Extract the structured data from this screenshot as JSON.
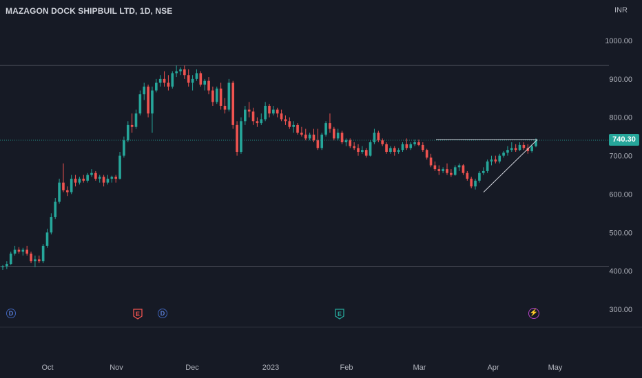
{
  "header": {
    "title": "MAZAGON DOCK SHIPBUIL LTD, 1D, NSE",
    "currency": "INR"
  },
  "price_badge": "740.30",
  "colors": {
    "up": "#26a69a",
    "down": "#ef5350",
    "background": "#161a25",
    "grid": "#2a2e39",
    "current_line": "#26a69a",
    "trendline": "#d1d4dc"
  },
  "events": [
    {
      "kind": "dividend",
      "label": "D",
      "date_index": 0
    },
    {
      "kind": "earnings-red",
      "label": "E",
      "date_index": 1
    },
    {
      "kind": "dividend",
      "label": "D",
      "date_index": 2
    },
    {
      "kind": "earnings-green",
      "label": "E",
      "date_index": 3
    },
    {
      "kind": "flash",
      "label": "⚡",
      "date_index": 4
    }
  ],
  "chart_data": {
    "type": "candlestick",
    "title": "MAZAGON DOCK SHIPBUIL LTD, 1D, NSE",
    "y_axis": {
      "ticks": [
        "1000.00",
        "900.00",
        "800.00",
        "700.00",
        "600.00",
        "500.00",
        "400.00",
        "300.00"
      ],
      "range": [
        260,
        1040
      ]
    },
    "x_axis": {
      "ticks": [
        "Oct",
        "Nov",
        "Dec",
        "2023",
        "Feb",
        "Mar",
        "Apr",
        "May"
      ]
    },
    "current_price": 740.3,
    "horizontal_lines": [
      935,
      412
    ],
    "candles": [
      {
        "o": 410,
        "h": 415,
        "l": 402,
        "c": 412
      },
      {
        "o": 412,
        "h": 425,
        "l": 405,
        "c": 418
      },
      {
        "o": 418,
        "h": 450,
        "l": 415,
        "c": 445
      },
      {
        "o": 445,
        "h": 465,
        "l": 440,
        "c": 455
      },
      {
        "o": 455,
        "h": 462,
        "l": 445,
        "c": 450
      },
      {
        "o": 450,
        "h": 460,
        "l": 440,
        "c": 455
      },
      {
        "o": 455,
        "h": 465,
        "l": 440,
        "c": 445
      },
      {
        "o": 445,
        "h": 450,
        "l": 420,
        "c": 425
      },
      {
        "o": 425,
        "h": 440,
        "l": 410,
        "c": 430
      },
      {
        "o": 430,
        "h": 440,
        "l": 420,
        "c": 425
      },
      {
        "o": 425,
        "h": 470,
        "l": 420,
        "c": 465
      },
      {
        "o": 465,
        "h": 510,
        "l": 460,
        "c": 500
      },
      {
        "o": 500,
        "h": 550,
        "l": 495,
        "c": 540
      },
      {
        "o": 540,
        "h": 590,
        "l": 535,
        "c": 580
      },
      {
        "o": 580,
        "h": 640,
        "l": 575,
        "c": 630
      },
      {
        "o": 630,
        "h": 680,
        "l": 605,
        "c": 610
      },
      {
        "o": 610,
        "h": 620,
        "l": 595,
        "c": 605
      },
      {
        "o": 605,
        "h": 650,
        "l": 600,
        "c": 640
      },
      {
        "o": 640,
        "h": 650,
        "l": 620,
        "c": 630
      },
      {
        "o": 630,
        "h": 645,
        "l": 625,
        "c": 640
      },
      {
        "o": 640,
        "h": 650,
        "l": 630,
        "c": 635
      },
      {
        "o": 635,
        "h": 655,
        "l": 630,
        "c": 650
      },
      {
        "o": 650,
        "h": 665,
        "l": 645,
        "c": 655
      },
      {
        "o": 655,
        "h": 660,
        "l": 635,
        "c": 640
      },
      {
        "o": 640,
        "h": 650,
        "l": 630,
        "c": 645
      },
      {
        "o": 645,
        "h": 650,
        "l": 620,
        "c": 630
      },
      {
        "o": 630,
        "h": 650,
        "l": 625,
        "c": 640
      },
      {
        "o": 640,
        "h": 648,
        "l": 630,
        "c": 645
      },
      {
        "o": 645,
        "h": 650,
        "l": 630,
        "c": 640
      },
      {
        "o": 640,
        "h": 710,
        "l": 638,
        "c": 700
      },
      {
        "o": 700,
        "h": 750,
        "l": 695,
        "c": 740
      },
      {
        "o": 740,
        "h": 790,
        "l": 735,
        "c": 780
      },
      {
        "o": 780,
        "h": 810,
        "l": 760,
        "c": 775
      },
      {
        "o": 775,
        "h": 820,
        "l": 770,
        "c": 810
      },
      {
        "o": 810,
        "h": 870,
        "l": 805,
        "c": 860
      },
      {
        "o": 860,
        "h": 890,
        "l": 845,
        "c": 880
      },
      {
        "o": 880,
        "h": 885,
        "l": 800,
        "c": 810
      },
      {
        "o": 810,
        "h": 880,
        "l": 760,
        "c": 870
      },
      {
        "o": 870,
        "h": 900,
        "l": 865,
        "c": 890
      },
      {
        "o": 890,
        "h": 910,
        "l": 880,
        "c": 900
      },
      {
        "o": 900,
        "h": 920,
        "l": 880,
        "c": 890
      },
      {
        "o": 890,
        "h": 910,
        "l": 870,
        "c": 880
      },
      {
        "o": 880,
        "h": 920,
        "l": 875,
        "c": 915
      },
      {
        "o": 915,
        "h": 935,
        "l": 905,
        "c": 920
      },
      {
        "o": 920,
        "h": 930,
        "l": 910,
        "c": 925
      },
      {
        "o": 925,
        "h": 935,
        "l": 900,
        "c": 910
      },
      {
        "o": 910,
        "h": 925,
        "l": 880,
        "c": 890
      },
      {
        "o": 890,
        "h": 910,
        "l": 870,
        "c": 900
      },
      {
        "o": 900,
        "h": 925,
        "l": 895,
        "c": 915
      },
      {
        "o": 915,
        "h": 920,
        "l": 880,
        "c": 885
      },
      {
        "o": 885,
        "h": 900,
        "l": 870,
        "c": 895
      },
      {
        "o": 895,
        "h": 905,
        "l": 860,
        "c": 870
      },
      {
        "o": 870,
        "h": 880,
        "l": 830,
        "c": 840
      },
      {
        "o": 840,
        "h": 880,
        "l": 835,
        "c": 875
      },
      {
        "o": 875,
        "h": 890,
        "l": 820,
        "c": 830
      },
      {
        "o": 830,
        "h": 850,
        "l": 810,
        "c": 820
      },
      {
        "o": 820,
        "h": 900,
        "l": 815,
        "c": 890
      },
      {
        "o": 890,
        "h": 895,
        "l": 770,
        "c": 780
      },
      {
        "o": 780,
        "h": 790,
        "l": 700,
        "c": 710
      },
      {
        "o": 710,
        "h": 800,
        "l": 705,
        "c": 790
      },
      {
        "o": 790,
        "h": 830,
        "l": 780,
        "c": 820
      },
      {
        "o": 820,
        "h": 840,
        "l": 800,
        "c": 815
      },
      {
        "o": 815,
        "h": 825,
        "l": 780,
        "c": 790
      },
      {
        "o": 790,
        "h": 800,
        "l": 775,
        "c": 785
      },
      {
        "o": 785,
        "h": 810,
        "l": 780,
        "c": 795
      },
      {
        "o": 795,
        "h": 840,
        "l": 790,
        "c": 830
      },
      {
        "o": 830,
        "h": 835,
        "l": 800,
        "c": 810
      },
      {
        "o": 810,
        "h": 830,
        "l": 805,
        "c": 820
      },
      {
        "o": 820,
        "h": 825,
        "l": 800,
        "c": 810
      },
      {
        "o": 810,
        "h": 820,
        "l": 790,
        "c": 795
      },
      {
        "o": 795,
        "h": 805,
        "l": 780,
        "c": 790
      },
      {
        "o": 790,
        "h": 800,
        "l": 770,
        "c": 775
      },
      {
        "o": 775,
        "h": 790,
        "l": 760,
        "c": 780
      },
      {
        "o": 780,
        "h": 785,
        "l": 755,
        "c": 760
      },
      {
        "o": 760,
        "h": 775,
        "l": 750,
        "c": 755
      },
      {
        "o": 755,
        "h": 770,
        "l": 740,
        "c": 745
      },
      {
        "o": 745,
        "h": 760,
        "l": 740,
        "c": 755
      },
      {
        "o": 755,
        "h": 770,
        "l": 735,
        "c": 740
      },
      {
        "o": 740,
        "h": 770,
        "l": 715,
        "c": 720
      },
      {
        "o": 720,
        "h": 760,
        "l": 715,
        "c": 755
      },
      {
        "o": 755,
        "h": 790,
        "l": 750,
        "c": 785
      },
      {
        "o": 785,
        "h": 810,
        "l": 760,
        "c": 770
      },
      {
        "o": 770,
        "h": 775,
        "l": 740,
        "c": 745
      },
      {
        "o": 745,
        "h": 770,
        "l": 740,
        "c": 760
      },
      {
        "o": 760,
        "h": 765,
        "l": 730,
        "c": 735
      },
      {
        "o": 735,
        "h": 745,
        "l": 725,
        "c": 740
      },
      {
        "o": 740,
        "h": 745,
        "l": 720,
        "c": 725
      },
      {
        "o": 725,
        "h": 735,
        "l": 715,
        "c": 720
      },
      {
        "o": 720,
        "h": 730,
        "l": 700,
        "c": 710
      },
      {
        "o": 710,
        "h": 725,
        "l": 705,
        "c": 715
      },
      {
        "o": 715,
        "h": 720,
        "l": 695,
        "c": 700
      },
      {
        "o": 700,
        "h": 740,
        "l": 698,
        "c": 735
      },
      {
        "o": 735,
        "h": 770,
        "l": 730,
        "c": 760
      },
      {
        "o": 760,
        "h": 765,
        "l": 735,
        "c": 740
      },
      {
        "o": 740,
        "h": 745,
        "l": 725,
        "c": 730
      },
      {
        "o": 730,
        "h": 735,
        "l": 705,
        "c": 710
      },
      {
        "o": 710,
        "h": 725,
        "l": 705,
        "c": 720
      },
      {
        "o": 720,
        "h": 725,
        "l": 700,
        "c": 710
      },
      {
        "o": 710,
        "h": 720,
        "l": 705,
        "c": 715
      },
      {
        "o": 715,
        "h": 735,
        "l": 710,
        "c": 730
      },
      {
        "o": 730,
        "h": 745,
        "l": 715,
        "c": 720
      },
      {
        "o": 720,
        "h": 735,
        "l": 715,
        "c": 730
      },
      {
        "o": 730,
        "h": 742,
        "l": 725,
        "c": 735
      },
      {
        "o": 735,
        "h": 742,
        "l": 725,
        "c": 728
      },
      {
        "o": 728,
        "h": 735,
        "l": 710,
        "c": 715
      },
      {
        "o": 715,
        "h": 718,
        "l": 690,
        "c": 695
      },
      {
        "o": 695,
        "h": 705,
        "l": 670,
        "c": 675
      },
      {
        "o": 675,
        "h": 685,
        "l": 660,
        "c": 665
      },
      {
        "o": 665,
        "h": 675,
        "l": 650,
        "c": 660
      },
      {
        "o": 660,
        "h": 670,
        "l": 655,
        "c": 665
      },
      {
        "o": 665,
        "h": 680,
        "l": 650,
        "c": 655
      },
      {
        "o": 655,
        "h": 665,
        "l": 645,
        "c": 650
      },
      {
        "o": 650,
        "h": 675,
        "l": 648,
        "c": 670
      },
      {
        "o": 670,
        "h": 680,
        "l": 660,
        "c": 675
      },
      {
        "o": 675,
        "h": 678,
        "l": 650,
        "c": 655
      },
      {
        "o": 655,
        "h": 660,
        "l": 635,
        "c": 640
      },
      {
        "o": 640,
        "h": 645,
        "l": 615,
        "c": 620
      },
      {
        "o": 620,
        "h": 640,
        "l": 612,
        "c": 635
      },
      {
        "o": 635,
        "h": 660,
        "l": 630,
        "c": 655
      },
      {
        "o": 655,
        "h": 670,
        "l": 650,
        "c": 660
      },
      {
        "o": 660,
        "h": 690,
        "l": 655,
        "c": 685
      },
      {
        "o": 685,
        "h": 700,
        "l": 675,
        "c": 690
      },
      {
        "o": 690,
        "h": 700,
        "l": 680,
        "c": 685
      },
      {
        "o": 685,
        "h": 705,
        "l": 680,
        "c": 700
      },
      {
        "o": 700,
        "h": 712,
        "l": 695,
        "c": 708
      },
      {
        "o": 708,
        "h": 725,
        "l": 700,
        "c": 715
      },
      {
        "o": 715,
        "h": 735,
        "l": 710,
        "c": 720
      },
      {
        "o": 720,
        "h": 730,
        "l": 710,
        "c": 715
      },
      {
        "o": 715,
        "h": 735,
        "l": 712,
        "c": 728
      },
      {
        "o": 728,
        "h": 735,
        "l": 715,
        "c": 720
      },
      {
        "o": 720,
        "h": 730,
        "l": 705,
        "c": 712
      },
      {
        "o": 712,
        "h": 730,
        "l": 708,
        "c": 725
      },
      {
        "o": 725,
        "h": 745,
        "l": 722,
        "c": 740
      }
    ]
  }
}
